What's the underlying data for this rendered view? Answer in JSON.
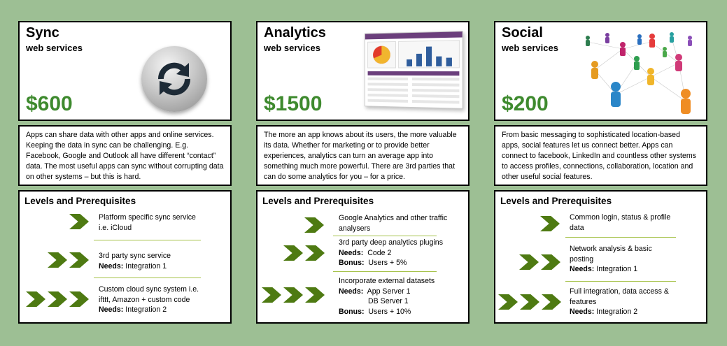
{
  "columns": [
    {
      "title": "Sync",
      "subtitle": "web services",
      "price": "$600",
      "image_icon": "sync-arrows-icon",
      "description": "Apps can share data with other apps and online services. Keeping the data in sync can be challenging. E.g. Facebook, Google and  Outlook all have different “contact” data. The most useful apps can sync without corrupting data on other systems – but this is hard.",
      "levels_title": "Levels and Prerequisites",
      "levels": [
        {
          "chevrons": 1,
          "lines": [
            "Platform specific sync service",
            "i.e. iCloud"
          ]
        },
        {
          "chevrons": 2,
          "lines": [
            "3rd party sync service"
          ],
          "needs_label": "Needs:",
          "needs": "Integration 1"
        },
        {
          "chevrons": 3,
          "lines": [
            "Custom cloud sync system i.e.",
            "ifttt, Amazon + custom code"
          ],
          "needs_label": "Needs:",
          "needs": "Integration 2"
        }
      ]
    },
    {
      "title": "Analytics",
      "subtitle": "web services",
      "price": "$1500",
      "image_icon": "analytics-dashboard-icon",
      "description": "The more an app knows about its users, the more valuable its data. Whether for marketing or to provide better experiences, analytics can turn an average app into something much more powerful. There are 3rd parties that can do some analytics for you – for a price.",
      "levels_title": "Levels and Prerequisites",
      "levels": [
        {
          "chevrons": 1,
          "lines": [
            "Google Analytics and other traffic",
            "analysers"
          ]
        },
        {
          "chevrons": 2,
          "lines": [
            "3rd party deep analytics plugins"
          ],
          "needs_label": "Needs:",
          "needs": "Code 2",
          "bonus_label": "Bonus:",
          "bonus": "Users + 5%"
        },
        {
          "chevrons": 3,
          "lines": [
            "Incorporate external datasets"
          ],
          "needs_label": "Needs:",
          "needs": "App Server 1",
          "needs2": "DB Server 1",
          "bonus_label": "Bonus:",
          "bonus": "Users + 10%"
        }
      ]
    },
    {
      "title": "Social",
      "subtitle": "web services",
      "price": "$200",
      "image_icon": "social-network-people-icon",
      "description": "From basic messaging  to sophisticated location-based apps, social features let us connect better. Apps can connect to facebook, LinkedIn and countless other systems to access profiles, connections, collaboration, location and other useful social features.",
      "levels_title": "Levels and Prerequisites",
      "levels": [
        {
          "chevrons": 1,
          "lines": [
            "Common login, status & profile",
            "data"
          ]
        },
        {
          "chevrons": 2,
          "lines": [
            "Network analysis & basic",
            "posting"
          ],
          "needs_label": "Needs:",
          "needs": "Integration 1"
        },
        {
          "chevrons": 3,
          "lines": [
            "Full integration, data access &",
            "features"
          ],
          "needs_label": "Needs:",
          "needs": "Integration 2"
        }
      ]
    }
  ],
  "colors": {
    "background": "#9dbf94",
    "price": "#3e8a2e",
    "chevron": "#4e7a12",
    "separator": "#a6c24a"
  }
}
